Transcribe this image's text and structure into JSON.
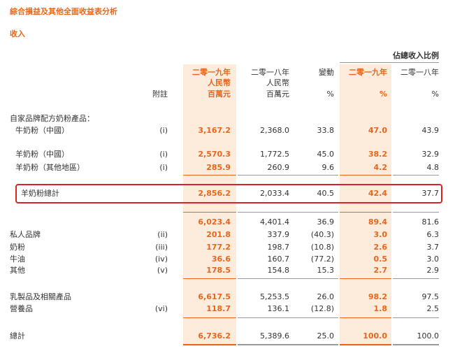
{
  "title": "綜合損益及其他全面收益表分析",
  "section": "收入",
  "headers": {
    "share_group": "佔總收入比例",
    "note": "附註",
    "y2019": [
      "二零一九年",
      "人民幣",
      "百萬元"
    ],
    "y2018": [
      "二零一八年",
      "人民幣",
      "百萬元"
    ],
    "change": [
      "變動",
      "%"
    ],
    "pct2019": [
      "二零一九年",
      "%"
    ],
    "pct2018": [
      "二零一八年",
      "%"
    ]
  },
  "group_heading": "自家品牌配方奶粉產品：",
  "rows": [
    {
      "label": "牛奶粉（中國）",
      "note": "(i)",
      "v2019": "3,167.2",
      "v2018": "2,368.0",
      "change": "33.8",
      "p2019": "47.0",
      "p2018": "43.9"
    },
    {
      "label": "羊奶粉（中國）",
      "note": "(i)",
      "v2019": "2,570.3",
      "v2018": "1,772.5",
      "change": "45.0",
      "p2019": "38.2",
      "p2018": "32.9"
    },
    {
      "label": "羊奶粉（其他地區）",
      "note": "(i)",
      "v2019": "285.9",
      "v2018": "260.9",
      "change": "9.6",
      "p2019": "4.2",
      "p2018": "4.8"
    },
    {
      "label": "羊奶粉總計",
      "note": "",
      "v2019": "2,856.2",
      "v2018": "2,033.4",
      "change": "40.5",
      "p2019": "42.4",
      "p2018": "37.7"
    },
    {
      "label": "",
      "note": "",
      "v2019": "6,023.4",
      "v2018": "4,401.4",
      "change": "36.9",
      "p2019": "89.4",
      "p2018": "81.6"
    },
    {
      "label": "私人品牌",
      "note": "(ii)",
      "v2019": "201.8",
      "v2018": "337.9",
      "change": "(40.3)",
      "p2019": "3.0",
      "p2018": "6.3"
    },
    {
      "label": "奶粉",
      "note": "(iii)",
      "v2019": "177.2",
      "v2018": "198.7",
      "change": "(10.8)",
      "p2019": "2.6",
      "p2018": "3.7"
    },
    {
      "label": "牛油",
      "note": "(iv)",
      "v2019": "36.6",
      "v2018": "160.7",
      "change": "(77.2)",
      "p2019": "0.5",
      "p2018": "3.0"
    },
    {
      "label": "其他",
      "note": "(v)",
      "v2019": "178.5",
      "v2018": "154.8",
      "change": "15.3",
      "p2019": "2.7",
      "p2018": "2.9"
    },
    {
      "label": "乳製品及相關產品",
      "note": "",
      "v2019": "6,617.5",
      "v2018": "5,253.5",
      "change": "26.0",
      "p2019": "98.2",
      "p2018": "97.5"
    },
    {
      "label": "營養品",
      "note": "(vi)",
      "v2019": "118.7",
      "v2018": "136.1",
      "change": "(12.8)",
      "p2019": "1.8",
      "p2018": "2.5"
    },
    {
      "label": "總計",
      "note": "",
      "v2019": "6,736.2",
      "v2018": "5,389.6",
      "change": "25.0",
      "p2019": "100.0",
      "p2018": "100.0"
    }
  ]
}
